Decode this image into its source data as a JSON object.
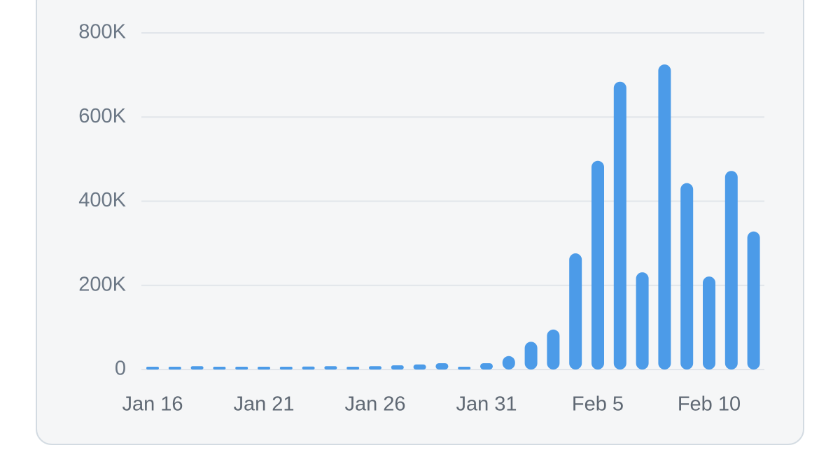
{
  "chart_data": {
    "type": "bar",
    "categories": [
      "Jan 16",
      null,
      null,
      null,
      null,
      "Jan 21",
      null,
      null,
      null,
      null,
      "Jan 26",
      null,
      null,
      null,
      null,
      "Jan 31",
      null,
      null,
      null,
      null,
      "Feb 5",
      null,
      null,
      null,
      null,
      "Feb 10",
      null,
      null
    ],
    "values": [
      3000,
      3000,
      8000,
      4000,
      4000,
      4000,
      5000,
      7000,
      8000,
      6000,
      8000,
      10000,
      12000,
      15000,
      6000,
      15000,
      32000,
      66000,
      95000,
      276000,
      496000,
      684000,
      231000,
      725000,
      443000,
      221000,
      472000,
      328000
    ],
    "color": "#4c9be8",
    "ylim": [
      0,
      800000
    ],
    "yticks": [
      0,
      {
        "value": 200000,
        "label": "200K"
      },
      {
        "value": 400000,
        "label": "400K"
      },
      {
        "value": 600000,
        "label": "600K"
      },
      {
        "value": 800000,
        "label": "800K"
      }
    ],
    "grid": true
  }
}
